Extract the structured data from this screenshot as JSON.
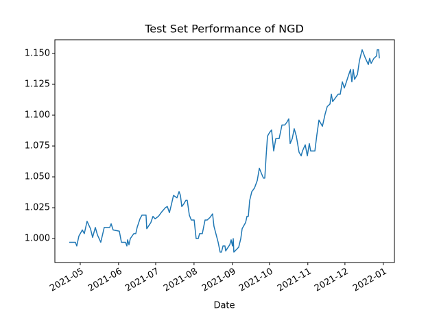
{
  "chart_data": {
    "type": "line",
    "title": "Test Set Performance of NGD",
    "x_label": "Date",
    "x": [
      -8.9,
      -3.9,
      -2.8,
      -1.1,
      1.7,
      3.3,
      5.5,
      8.3,
      10.0,
      12.2,
      13.9,
      16.6,
      19.4,
      23.8,
      25.0,
      26.6,
      31.6,
      33.3,
      36.6,
      37.7,
      38.3,
      39.4,
      40.5,
      43.3,
      44.9,
      46.0,
      48.3,
      49.9,
      53.2,
      53.8,
      57.1,
      58.8,
      60.5,
      63.2,
      65.4,
      67.1,
      68.8,
      70.4,
      72.1,
      73.8,
      75.4,
      78.2,
      79.9,
      81.0,
      82.1,
      83.7,
      85.4,
      86.5,
      88.2,
      89.8,
      92.1,
      93.7,
      95.4,
      96.5,
      98.7,
      100.9,
      102.6,
      104.8,
      107.0,
      108.1,
      111.5,
      113.1,
      114.2,
      115.4,
      117.0,
      117.6,
      120.9,
      122.0,
      123.1,
      123.7,
      124.2,
      128.1,
      129.8,
      130.9,
      133.7,
      134.8,
      135.9,
      137.0,
      138.7,
      140.9,
      143.1,
      144.8,
      146.4,
      148.1,
      149.2,
      150.3,
      151.4,
      153.1,
      154.7,
      156.4,
      158.1,
      160.8,
      163.1,
      165.3,
      166.9,
      168.6,
      169.7,
      171.4,
      173.0,
      174.7,
      176.9,
      178.6,
      179.7,
      181.9,
      183.6,
      185.2,
      186.3,
      189.7,
      191.3,
      193.0,
      195.8,
      198.0,
      199.7,
      201.9,
      203.0,
      204.1,
      206.3,
      208.5,
      210.2,
      211.9,
      213.5,
      215.2,
      216.8,
      218.5,
      219.6,
      220.7,
      221.8,
      224.1,
      225.7,
      227.9,
      230.2,
      232.9,
      234.0,
      235.2,
      237.4,
      239.6,
      240.1,
      241.3,
      241.8
    ],
    "series": [
      {
        "color": "#1f77b4",
        "values": [
          0.997,
          0.997,
          0.994,
          1.002,
          1.007,
          1.004,
          1.014,
          1.008,
          1.001,
          1.009,
          1.003,
          0.997,
          1.009,
          1.009,
          1.012,
          1.007,
          1.006,
          0.997,
          0.997,
          0.994,
          0.999,
          0.995,
          1.0,
          1.004,
          1.004,
          1.009,
          1.016,
          1.019,
          1.019,
          1.008,
          1.013,
          1.018,
          1.016,
          1.018,
          1.021,
          1.023,
          1.025,
          1.026,
          1.021,
          1.028,
          1.035,
          1.033,
          1.038,
          1.035,
          1.026,
          1.028,
          1.031,
          1.031,
          1.019,
          1.015,
          1.015,
          1.0,
          1.0,
          1.004,
          1.004,
          1.015,
          1.015,
          1.017,
          1.02,
          1.01,
          0.997,
          0.989,
          0.989,
          0.994,
          0.994,
          0.99,
          0.995,
          0.999,
          0.994,
          1.0,
          0.989,
          0.993,
          1.0,
          1.008,
          1.013,
          1.018,
          1.018,
          1.031,
          1.038,
          1.041,
          1.047,
          1.057,
          1.053,
          1.049,
          1.049,
          1.067,
          1.083,
          1.086,
          1.088,
          1.071,
          1.081,
          1.081,
          1.092,
          1.092,
          1.094,
          1.097,
          1.077,
          1.081,
          1.089,
          1.083,
          1.07,
          1.067,
          1.071,
          1.076,
          1.067,
          1.077,
          1.071,
          1.071,
          1.084,
          1.096,
          1.091,
          1.101,
          1.107,
          1.109,
          1.117,
          1.111,
          1.114,
          1.117,
          1.117,
          1.127,
          1.122,
          1.127,
          1.132,
          1.137,
          1.127,
          1.137,
          1.129,
          1.133,
          1.144,
          1.153,
          1.147,
          1.141,
          1.146,
          1.142,
          1.146,
          1.148,
          1.153,
          1.153,
          1.146
        ]
      }
    ],
    "xlim": [
      -20.5,
      254
    ],
    "xticks": [
      {
        "value": 0,
        "label": "2021-05"
      },
      {
        "value": 31,
        "label": "2021-06"
      },
      {
        "value": 61,
        "label": "2021-07"
      },
      {
        "value": 92,
        "label": "2021-08"
      },
      {
        "value": 123,
        "label": "2021-09"
      },
      {
        "value": 153,
        "label": "2021-10"
      },
      {
        "value": 184,
        "label": "2021-11"
      },
      {
        "value": 214,
        "label": "2021-12"
      },
      {
        "value": 245,
        "label": "2022-01"
      }
    ],
    "ylim": [
      0.9806,
      1.1611
    ],
    "yticks": [
      {
        "value": 1,
        "label": "1.000"
      },
      {
        "value": 1.025,
        "label": "1.025"
      },
      {
        "value": 1.05,
        "label": "1.050"
      },
      {
        "value": 1.075,
        "label": "1.075"
      },
      {
        "value": 1.1,
        "label": "1.100"
      },
      {
        "value": 1.125,
        "label": "1.125"
      },
      {
        "value": 1.15,
        "label": "1.150"
      }
    ],
    "grid": false
  }
}
